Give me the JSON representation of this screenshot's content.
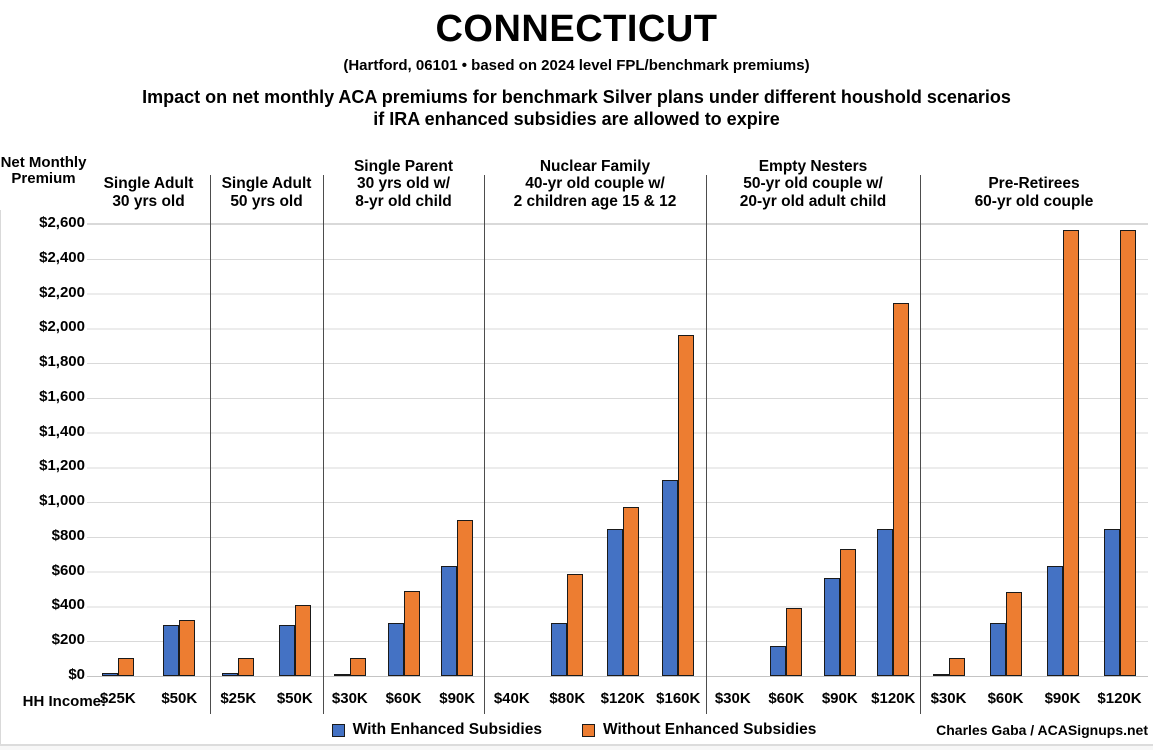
{
  "header": {
    "title": "CONNECTICUT",
    "subtitle": "(Hartford, 06101 • based on 2024 level FPL/benchmark premiums)",
    "description_line1": "Impact on net monthly ACA premiums for benchmark Silver plans under different houshold scenarios",
    "description_line2": "if IRA enhanced subsidies are allowed to expire"
  },
  "chart_data": {
    "type": "bar",
    "title": "Impact on net monthly ACA premiums for benchmark Silver plans under different houshold scenarios if IRA enhanced subsidies are allowed to expire",
    "ylabel_lines": [
      "Net",
      "Monthly",
      "Premium"
    ],
    "xlabel": "HH Income:",
    "ylim": [
      0,
      2600
    ],
    "ytick_step": 200,
    "ytick_labels": [
      "$0",
      "$200",
      "$400",
      "$600",
      "$800",
      "$1,000",
      "$1,200",
      "$1,400",
      "$1,600",
      "$1,800",
      "$2,000",
      "$2,200",
      "$2,400",
      "$2,600"
    ],
    "grid": true,
    "legend_position": "bottom",
    "series_names": [
      "With Enhanced Subsidies",
      "Without Enhanced Subsidies"
    ],
    "panels": [
      {
        "header_lines": [
          "Single Adult",
          "30 yrs old"
        ],
        "categories": [
          "$25K",
          "$50K"
        ],
        "series": [
          {
            "name": "With Enhanced Subsidies",
            "values": [
              20,
              295
            ]
          },
          {
            "name": "Without Enhanced Subsidies",
            "values": [
              105,
              325
            ]
          }
        ]
      },
      {
        "header_lines": [
          "Single Adult",
          "50 yrs old"
        ],
        "categories": [
          "$25K",
          "$50K"
        ],
        "series": [
          {
            "name": "With Enhanced Subsidies",
            "values": [
              20,
              295
            ]
          },
          {
            "name": "Without Enhanced Subsidies",
            "values": [
              105,
              410
            ]
          }
        ]
      },
      {
        "header_lines": [
          "Single Parent",
          "30 yrs old w/",
          "8-yr old child"
        ],
        "categories": [
          "$30K",
          "$60K",
          "$90K"
        ],
        "series": [
          {
            "name": "With Enhanced Subsidies",
            "values": [
              5,
              305,
              635
            ]
          },
          {
            "name": "Without Enhanced Subsidies",
            "values": [
              105,
              490,
              895
            ]
          }
        ]
      },
      {
        "header_lines": [
          "Nuclear Family",
          "40-yr old couple w/",
          "2 children age 15 & 12"
        ],
        "categories": [
          "$40K",
          "$80K",
          "$120K",
          "$160K"
        ],
        "series": [
          {
            "name": "With Enhanced Subsidies",
            "values": [
              0,
              305,
              845,
              1130
            ]
          },
          {
            "name": "Without Enhanced Subsidies",
            "values": [
              0,
              585,
              975,
              1960
            ]
          }
        ]
      },
      {
        "header_lines": [
          "Empty Nesters",
          "50-yr old couple w/",
          "20-yr old adult child"
        ],
        "categories": [
          "$30K",
          "$60K",
          "$90K",
          "$120K"
        ],
        "series": [
          {
            "name": "With Enhanced Subsidies",
            "values": [
              0,
              170,
              565,
              845
            ]
          },
          {
            "name": "Without Enhanced Subsidies",
            "values": [
              0,
              390,
              730,
              2145
            ]
          }
        ]
      },
      {
        "header_lines": [
          "Pre-Retirees",
          "60-yr old couple"
        ],
        "categories": [
          "$30K",
          "$60K",
          "$90K",
          "$120K"
        ],
        "series": [
          {
            "name": "With Enhanced Subsidies",
            "values": [
              10,
              305,
              635,
              845
            ]
          },
          {
            "name": "Without Enhanced Subsidies",
            "values": [
              105,
              485,
              2565,
              2565
            ]
          }
        ]
      }
    ],
    "colors": {
      "with_enhanced": "#4472C4",
      "without_enhanced": "#ED7D31",
      "bar_border": "#1a1a1a",
      "gridline": "#d9d9d9",
      "panel_divider": "#4d4d4d"
    }
  },
  "legend": {
    "items": [
      {
        "label": "With Enhanced Subsidies",
        "color": "#4472C4"
      },
      {
        "label": "Without Enhanced Subsidies",
        "color": "#ED7D31"
      }
    ]
  },
  "footer": {
    "credit": "Charles Gaba / ACASignups.net"
  }
}
